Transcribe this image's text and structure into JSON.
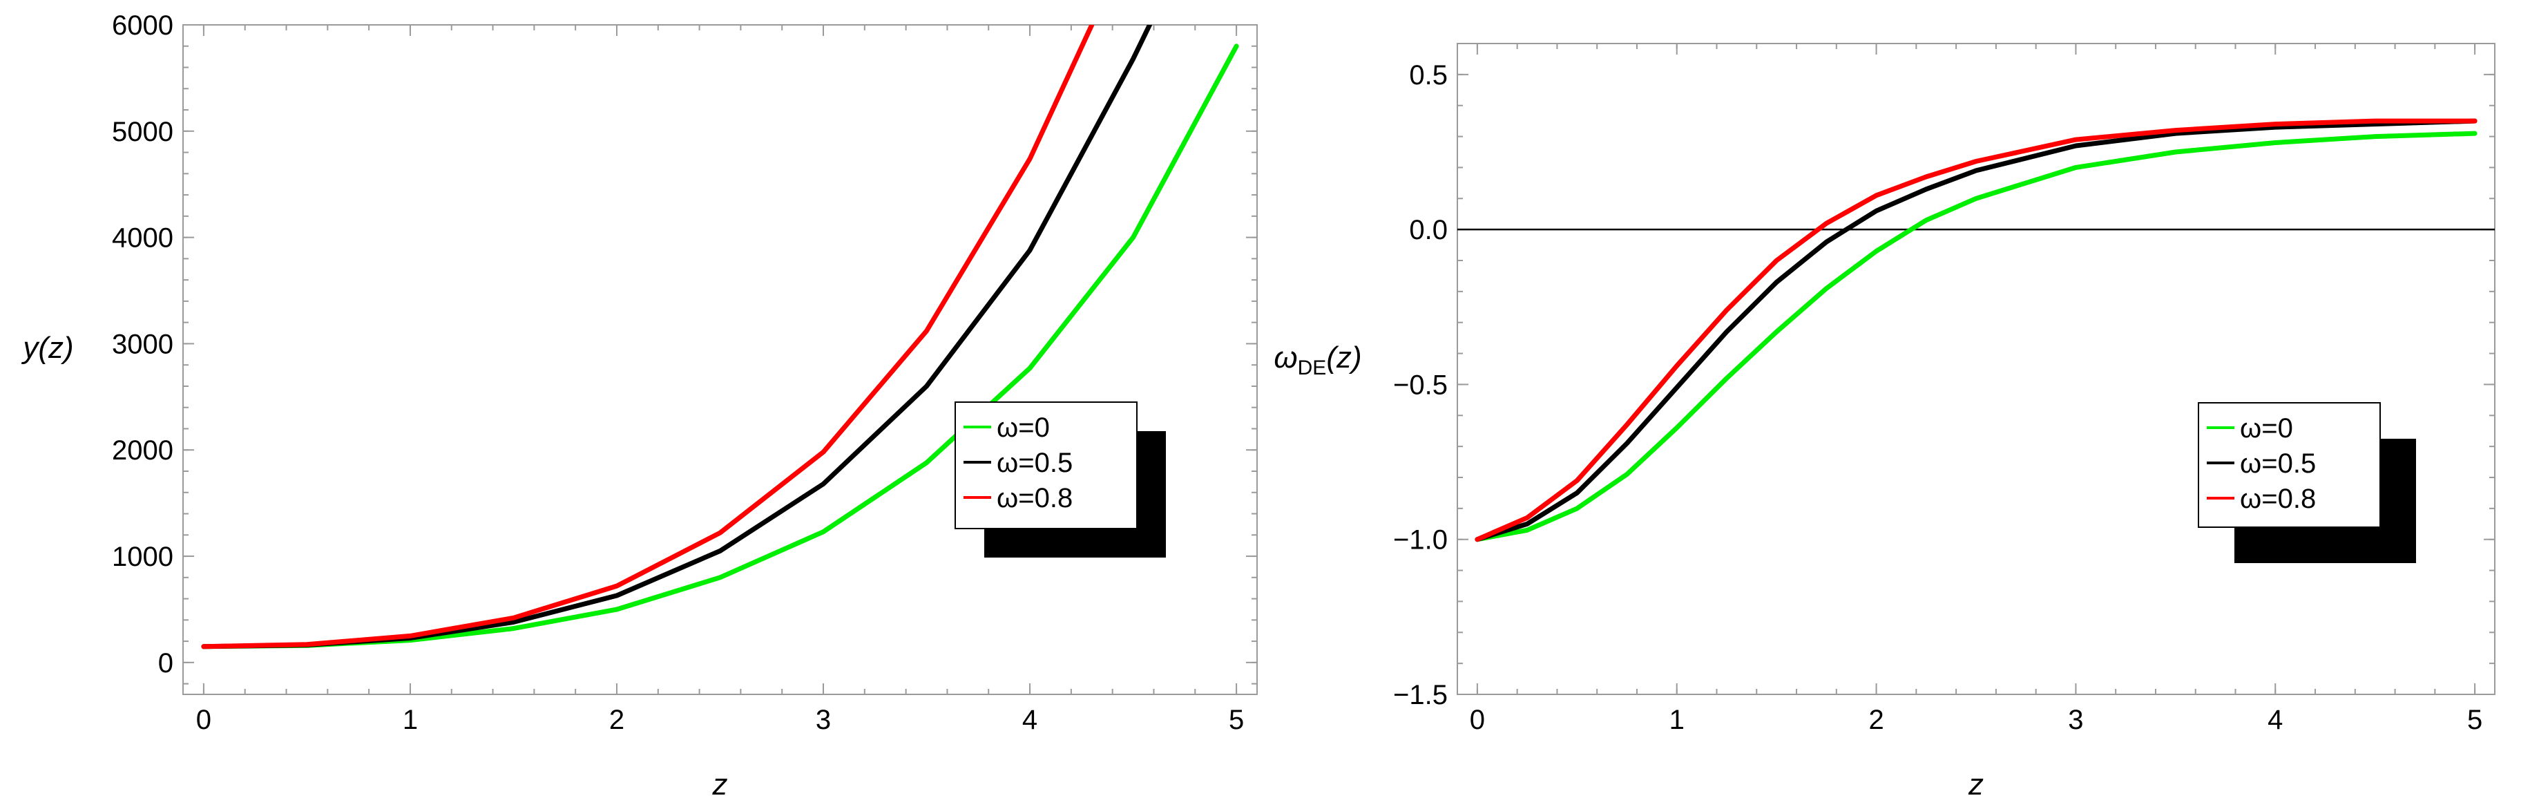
{
  "chart_data": [
    {
      "type": "line",
      "xlabel": "z",
      "ylabel": "y(z)",
      "xlim": [
        -0.1,
        5.1
      ],
      "ylim": [
        -300,
        6000
      ],
      "xticks": [
        0,
        1,
        2,
        3,
        4,
        5
      ],
      "yticks": [
        0,
        1000,
        2000,
        3000,
        4000,
        5000,
        6000
      ],
      "xtick_labels": [
        "0",
        "1",
        "2",
        "3",
        "4",
        "5"
      ],
      "ytick_labels": [
        "0",
        "1000",
        "2000",
        "3000",
        "4000",
        "5000",
        "6000"
      ],
      "grid": false,
      "legend_position": "center-right",
      "series": [
        {
          "name": "ω=0",
          "color": "#00ee00",
          "x": [
            0,
            0.5,
            1,
            1.5,
            2,
            2.5,
            3,
            3.5,
            4,
            4.5,
            5
          ],
          "y": [
            150,
            160,
            210,
            320,
            500,
            800,
            1230,
            1880,
            2770,
            4000,
            5800
          ]
        },
        {
          "name": "ω=0.5",
          "color": "#000000",
          "x": [
            0,
            0.5,
            1,
            1.5,
            2,
            2.5,
            3,
            3.5,
            4,
            4.5,
            4.58
          ],
          "y": [
            150,
            165,
            230,
            380,
            630,
            1050,
            1680,
            2600,
            3880,
            5680,
            6000
          ]
        },
        {
          "name": "ω=0.8",
          "color": "#ff0000",
          "x": [
            0,
            0.5,
            1,
            1.5,
            2,
            2.5,
            3,
            3.5,
            4,
            4.3
          ],
          "y": [
            150,
            170,
            250,
            420,
            720,
            1220,
            1980,
            3120,
            4740,
            6000
          ]
        }
      ]
    },
    {
      "type": "line",
      "xlabel": "z",
      "ylabel": "ω",
      "ylabel_sub": "DE",
      "ylabel_suffix": "(z)",
      "xlim": [
        -0.1,
        5.1
      ],
      "ylim": [
        -1.5,
        0.6
      ],
      "xticks": [
        0,
        1,
        2,
        3,
        4,
        5
      ],
      "yticks": [
        -1.5,
        -1.0,
        -0.5,
        0.0,
        0.5
      ],
      "xtick_labels": [
        "0",
        "1",
        "2",
        "3",
        "4",
        "5"
      ],
      "ytick_labels": [
        "−1.5",
        "−1.0",
        "−0.5",
        "0.0",
        "0.5"
      ],
      "zero_line": 0,
      "grid": false,
      "legend_position": "lower-right",
      "series": [
        {
          "name": "ω=0",
          "color": "#00ee00",
          "x": [
            0,
            0.25,
            0.5,
            0.75,
            1,
            1.25,
            1.5,
            1.75,
            2,
            2.25,
            2.5,
            3,
            3.5,
            4,
            4.5,
            5
          ],
          "y": [
            -1.0,
            -0.97,
            -0.9,
            -0.79,
            -0.64,
            -0.48,
            -0.33,
            -0.19,
            -0.07,
            0.03,
            0.1,
            0.2,
            0.25,
            0.28,
            0.3,
            0.31
          ]
        },
        {
          "name": "ω=0.5",
          "color": "#000000",
          "x": [
            0,
            0.25,
            0.5,
            0.75,
            1,
            1.25,
            1.5,
            1.75,
            2,
            2.25,
            2.5,
            3,
            3.5,
            4,
            4.5,
            5
          ],
          "y": [
            -1.0,
            -0.95,
            -0.85,
            -0.69,
            -0.51,
            -0.33,
            -0.17,
            -0.04,
            0.06,
            0.13,
            0.19,
            0.27,
            0.31,
            0.33,
            0.34,
            0.35
          ]
        },
        {
          "name": "ω=0.8",
          "color": "#ff0000",
          "x": [
            0,
            0.25,
            0.5,
            0.75,
            1,
            1.25,
            1.5,
            1.75,
            2,
            2.25,
            2.5,
            3,
            3.5,
            4,
            4.5,
            5
          ],
          "y": [
            -1.0,
            -0.93,
            -0.81,
            -0.63,
            -0.44,
            -0.26,
            -0.1,
            0.02,
            0.11,
            0.17,
            0.22,
            0.29,
            0.32,
            0.34,
            0.35,
            0.35
          ]
        }
      ]
    }
  ]
}
